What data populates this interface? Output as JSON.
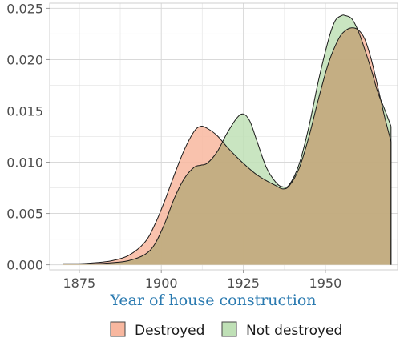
{
  "chart_data": {
    "type": "area",
    "title": "",
    "xlabel": "Year of house construction",
    "ylabel": "",
    "xlim": [
      1866,
      1972
    ],
    "ylim": [
      -0.0005,
      0.0255
    ],
    "xticks": [
      1875,
      1900,
      1925,
      1950
    ],
    "yticks": [
      0.0,
      0.005,
      0.01,
      0.015,
      0.02,
      0.025
    ],
    "xtick_labels": [
      "1875",
      "1900",
      "1925",
      "1950"
    ],
    "ytick_labels": [
      "0.000",
      "0.005",
      "0.010",
      "0.015",
      "0.020",
      "0.025"
    ],
    "grid": true,
    "legend_position": "bottom",
    "series": [
      {
        "name": "Destroyed",
        "fill": "#f8b79f",
        "fill_opacity": 0.85,
        "x": [
          1870,
          1875,
          1880,
          1885,
          1890,
          1895,
          1898,
          1901,
          1904,
          1907,
          1910,
          1912,
          1914,
          1917,
          1920,
          1923,
          1926,
          1929,
          1932,
          1935,
          1937,
          1939,
          1942,
          1945,
          1948,
          1951,
          1954,
          1956,
          1958,
          1960,
          1962,
          1964,
          1966,
          1968,
          1970
        ],
        "y": [
          0.0001,
          0.0001,
          0.0002,
          0.0004,
          0.0009,
          0.0022,
          0.0039,
          0.0062,
          0.0088,
          0.0112,
          0.013,
          0.0135,
          0.0133,
          0.0126,
          0.0115,
          0.0105,
          0.0096,
          0.0088,
          0.0082,
          0.0077,
          0.0074,
          0.0077,
          0.0094,
          0.0125,
          0.0163,
          0.0197,
          0.022,
          0.0228,
          0.0231,
          0.0229,
          0.022,
          0.02,
          0.0173,
          0.0145,
          0.012
        ]
      },
      {
        "name": "Not destroyed",
        "fill": "#bfe0b6",
        "fill_opacity": 0.85,
        "x": [
          1870,
          1875,
          1880,
          1885,
          1890,
          1895,
          1898,
          1901,
          1904,
          1907,
          1910,
          1912,
          1914,
          1917,
          1920,
          1923,
          1925,
          1927,
          1929,
          1932,
          1935,
          1937,
          1939,
          1942,
          1945,
          1948,
          1951,
          1953,
          1955,
          1956,
          1958,
          1960,
          1962,
          1964,
          1966,
          1968,
          1970
        ],
        "y": [
          0.0001,
          0.0001,
          0.0001,
          0.0002,
          0.0004,
          0.001,
          0.002,
          0.004,
          0.0065,
          0.0084,
          0.0095,
          0.0097,
          0.0099,
          0.011,
          0.0128,
          0.0143,
          0.0147,
          0.014,
          0.0122,
          0.0095,
          0.008,
          0.0076,
          0.0078,
          0.0098,
          0.0135,
          0.0181,
          0.022,
          0.0238,
          0.0243,
          0.0243,
          0.024,
          0.0228,
          0.021,
          0.019,
          0.0168,
          0.0152,
          0.0135
        ]
      }
    ],
    "overlap_color": "#c9c99e"
  }
}
